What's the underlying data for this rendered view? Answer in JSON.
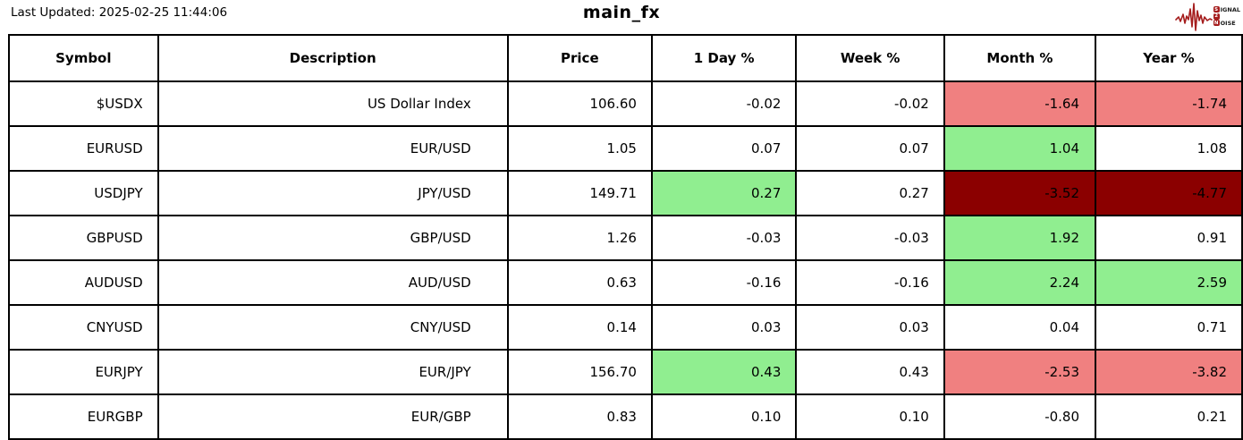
{
  "page": {
    "last_updated": "Last Updated: 2025-02-25 11:44:06",
    "title": "main_fx",
    "logo": {
      "line1_initial": "S",
      "line1_rest": "IGNAL",
      "line2_initial": "2",
      "line2_rest": "",
      "line3_initial": "N",
      "line3_rest": "OISE"
    }
  },
  "colors": {
    "gain": "#90ee90",
    "gain_text": "#000000",
    "loss": "#f08080",
    "loss_text": "#000000",
    "loss_extreme": "#8b0000",
    "loss_extreme_text": "#000000",
    "border": "#000000",
    "logo_red": "#a51d1d"
  },
  "chart_data": {
    "type": "table",
    "title": "main_fx",
    "last_updated": "2025-02-25 11:44:06",
    "columns": [
      "Symbol",
      "Description",
      "Price",
      "1 Day %",
      "Week %",
      "Month %",
      "Year %"
    ],
    "rows": [
      {
        "cells": [
          "$USDX",
          "US Dollar Index",
          "106.60",
          "-0.02",
          "-0.02",
          "-1.64",
          "-1.74"
        ],
        "highlights": [
          null,
          null,
          null,
          null,
          null,
          "loss",
          "loss"
        ]
      },
      {
        "cells": [
          "EURUSD",
          "EUR/USD",
          "1.05",
          "0.07",
          "0.07",
          "1.04",
          "1.08"
        ],
        "highlights": [
          null,
          null,
          null,
          null,
          null,
          "gain",
          null
        ]
      },
      {
        "cells": [
          "USDJPY",
          "JPY/USD",
          "149.71",
          "0.27",
          "0.27",
          "-3.52",
          "-4.77"
        ],
        "highlights": [
          null,
          null,
          null,
          "gain",
          null,
          "loss_extreme",
          "loss_extreme"
        ]
      },
      {
        "cells": [
          "GBPUSD",
          "GBP/USD",
          "1.26",
          "-0.03",
          "-0.03",
          "1.92",
          "0.91"
        ],
        "highlights": [
          null,
          null,
          null,
          null,
          null,
          "gain",
          null
        ]
      },
      {
        "cells": [
          "AUDUSD",
          "AUD/USD",
          "0.63",
          "-0.16",
          "-0.16",
          "2.24",
          "2.59"
        ],
        "highlights": [
          null,
          null,
          null,
          null,
          null,
          "gain",
          "gain"
        ]
      },
      {
        "cells": [
          "CNYUSD",
          "CNY/USD",
          "0.14",
          "0.03",
          "0.03",
          "0.04",
          "0.71"
        ],
        "highlights": [
          null,
          null,
          null,
          null,
          null,
          null,
          null
        ]
      },
      {
        "cells": [
          "EURJPY",
          "EUR/JPY",
          "156.70",
          "0.43",
          "0.43",
          "-2.53",
          "-3.82"
        ],
        "highlights": [
          null,
          null,
          null,
          "gain",
          null,
          "loss",
          "loss"
        ]
      },
      {
        "cells": [
          "EURGBP",
          "EUR/GBP",
          "0.83",
          "0.10",
          "0.10",
          "-0.80",
          "0.21"
        ],
        "highlights": [
          null,
          null,
          null,
          null,
          null,
          null,
          null
        ]
      }
    ]
  }
}
